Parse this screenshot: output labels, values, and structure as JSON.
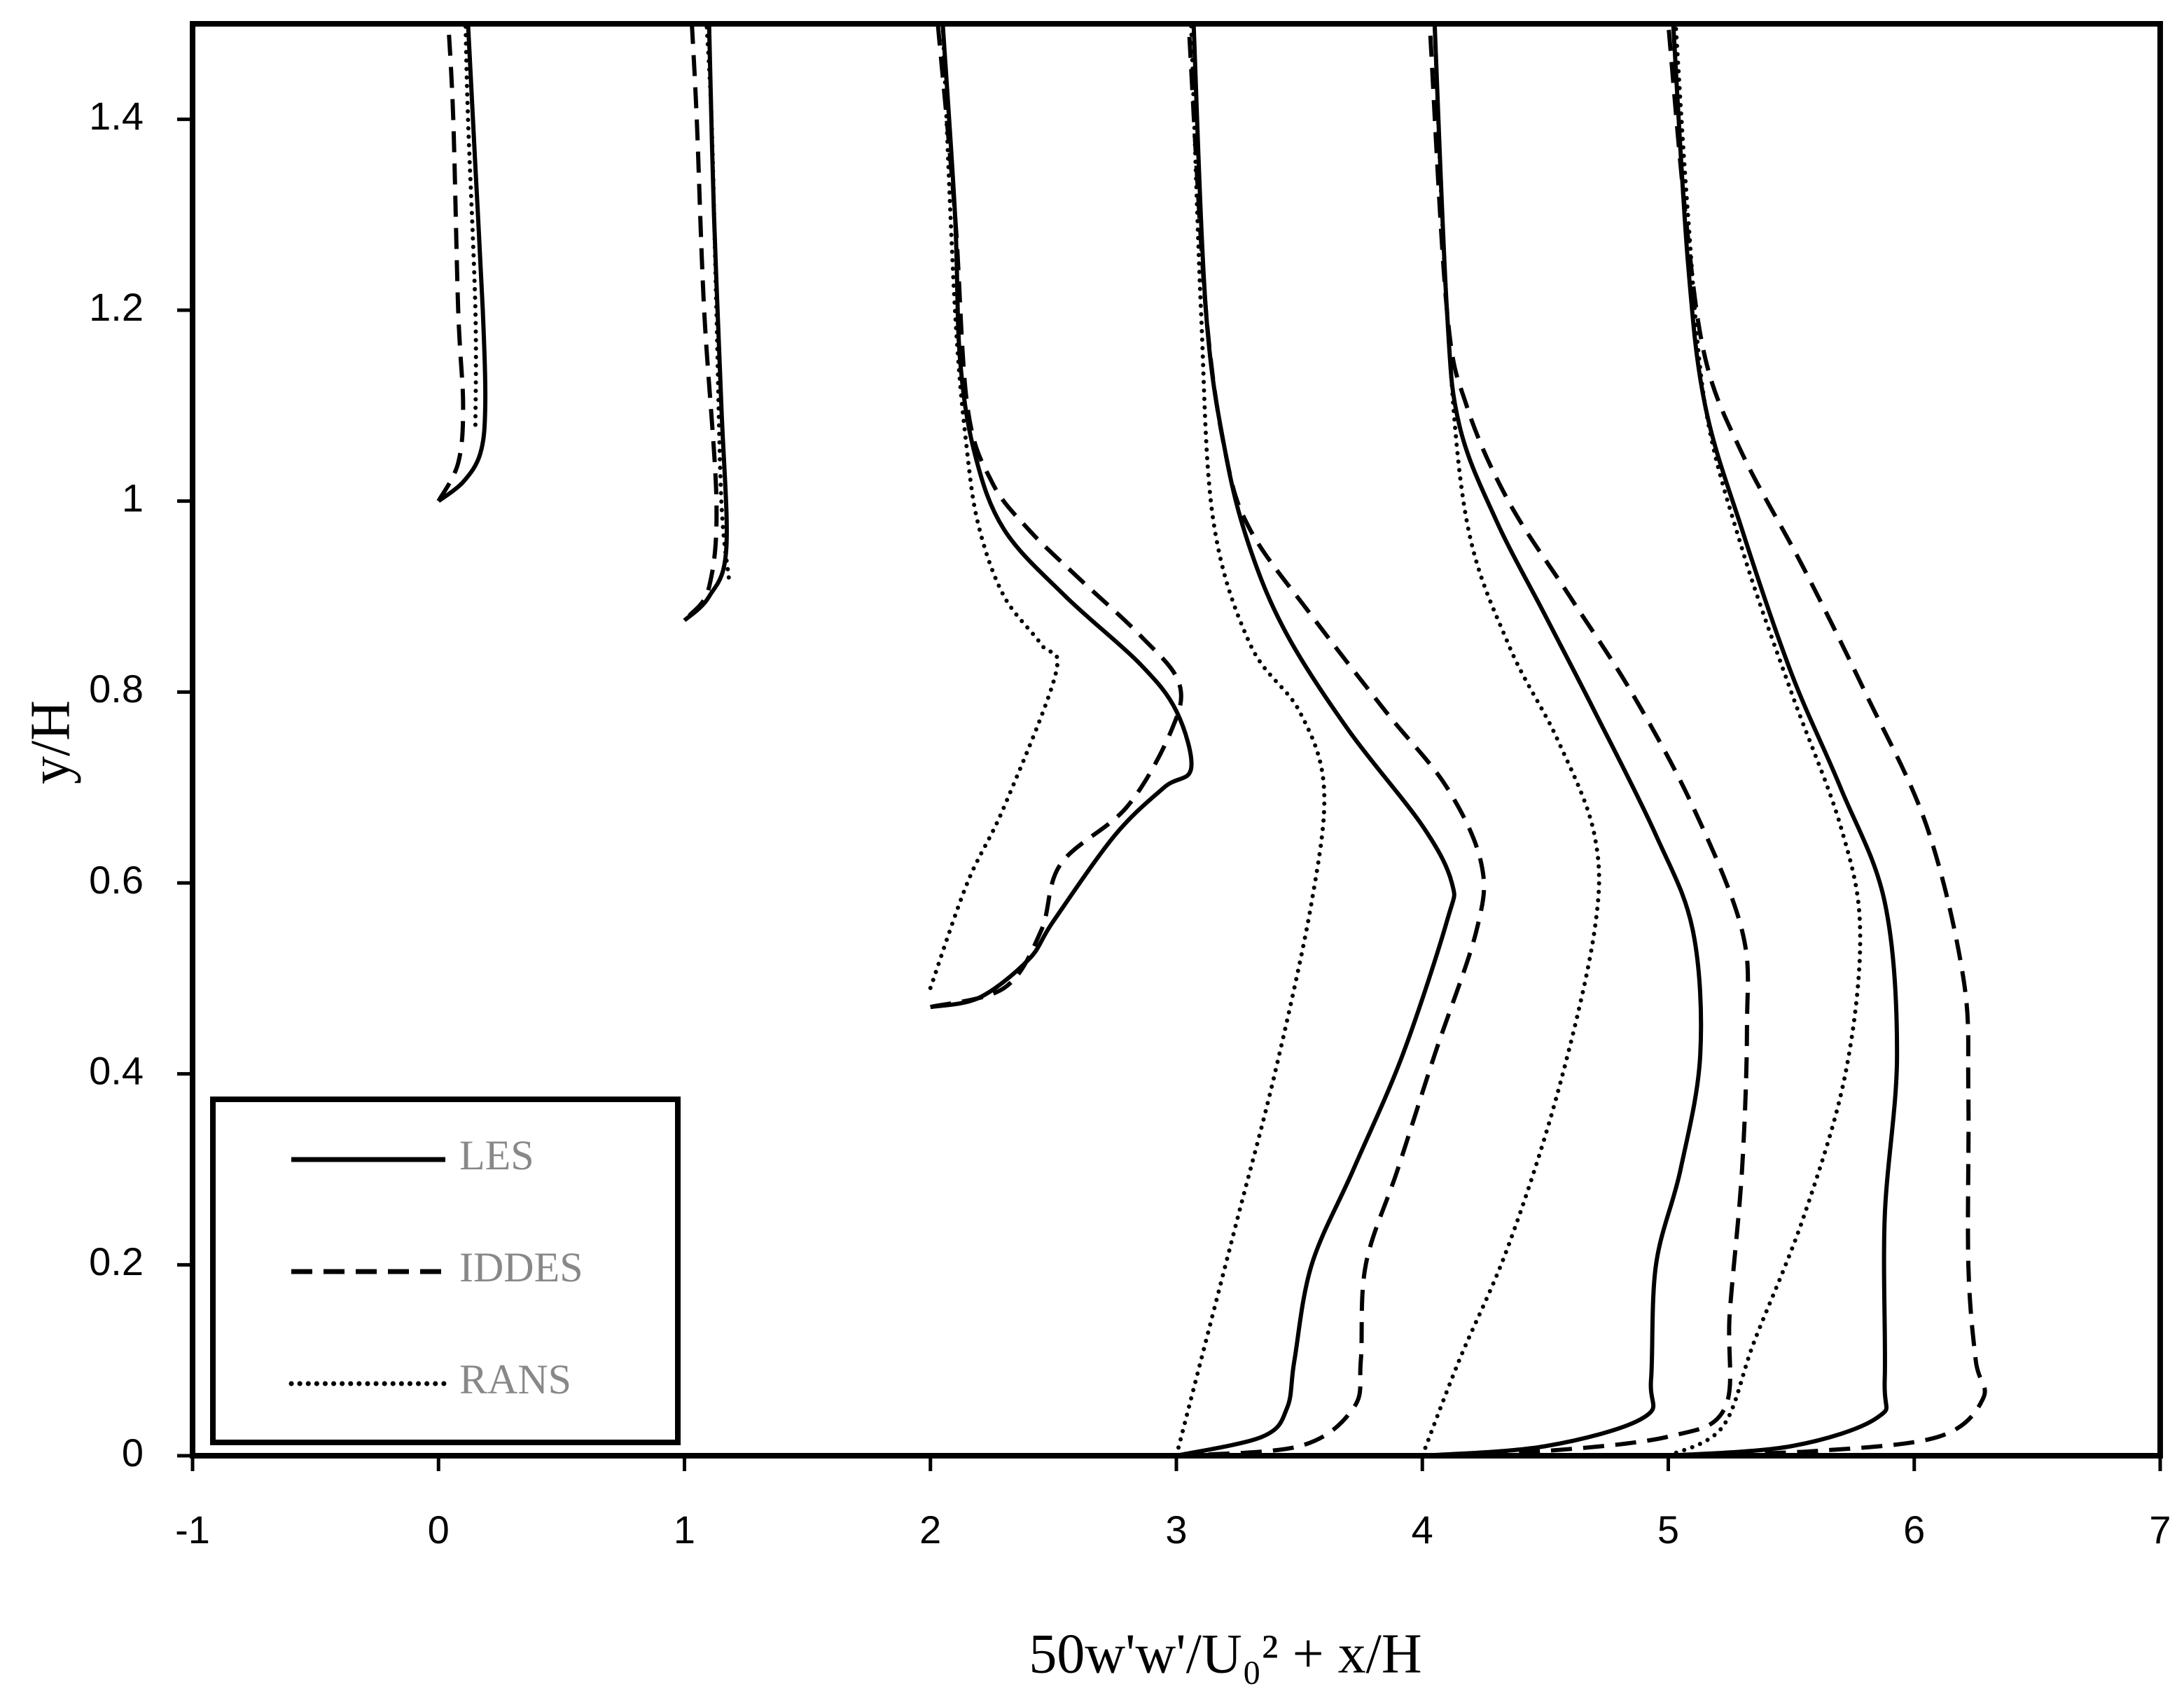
{
  "chart_data": {
    "type": "line",
    "xlabel": "50w'w'/U₀² + x/H",
    "ylabel": "y/H",
    "xlim": [
      -1,
      7
    ],
    "xticks": [
      -1,
      0,
      1,
      2,
      3,
      4,
      5,
      6,
      7
    ],
    "ylim": [
      0,
      1.5
    ],
    "yticks": [
      0,
      0.2,
      0.4,
      0.6,
      0.8,
      1,
      1.2,
      1.4
    ],
    "legend": "lower left",
    "series": [
      {
        "name": "LES",
        "color": "#000000",
        "dash": "solid",
        "x": [
          0,
          0.1,
          0.17,
          0.19,
          0.18,
          0.15,
          0.12,
          null,
          1.0,
          1.1,
          1.17,
          1.15,
          1.12,
          1.1,
          null,
          2.0,
          2.2,
          2.4,
          2.5,
          2.75,
          2.95,
          3.06,
          3.0,
          2.85,
          2.55,
          2.3,
          2.18,
          2.12,
          2.1,
          2.05,
          null,
          3.0,
          3.35,
          3.45,
          3.48,
          3.55,
          3.72,
          3.92,
          4.1,
          4.12,
          4.0,
          3.7,
          3.45,
          3.3,
          3.2,
          3.12,
          3.07,
          null,
          4.0,
          4.5,
          4.9,
          4.93,
          4.95,
          5.05,
          5.13,
          5.1,
          4.95,
          4.7,
          4.5,
          4.3,
          4.15,
          4.1,
          4.05,
          null,
          5.0,
          5.5,
          5.85,
          5.88,
          5.88,
          5.93,
          5.88,
          5.7,
          5.5,
          5.3,
          5.15,
          5.08,
          5.02
        ],
        "values": [
          1.0,
          1.02,
          1.05,
          1.1,
          1.2,
          1.35,
          1.5,
          null,
          0.875,
          0.9,
          0.95,
          1.1,
          1.3,
          1.5,
          null,
          0.47,
          0.48,
          0.52,
          0.56,
          0.65,
          0.7,
          0.72,
          0.78,
          0.83,
          0.9,
          0.97,
          1.05,
          1.15,
          1.3,
          1.5,
          null,
          0,
          0.02,
          0.05,
          0.1,
          0.2,
          0.3,
          0.42,
          0.56,
          0.6,
          0.66,
          0.76,
          0.86,
          0.95,
          1.05,
          1.2,
          1.5,
          null,
          0,
          0.01,
          0.04,
          0.08,
          0.2,
          0.3,
          0.42,
          0.55,
          0.65,
          0.78,
          0.88,
          0.98,
          1.08,
          1.2,
          1.5,
          null,
          0,
          0.01,
          0.04,
          0.08,
          0.25,
          0.42,
          0.58,
          0.7,
          0.82,
          0.97,
          1.1,
          1.25,
          1.5
        ]
      },
      {
        "name": "IDDES",
        "color": "#000000",
        "dash": "dashed",
        "x": [
          0,
          0.08,
          0.1,
          0.08,
          0.06,
          0.04,
          null,
          1.02,
          1.1,
          1.13,
          1.08,
          1.05,
          1.03,
          null,
          2.0,
          2.3,
          2.45,
          2.53,
          2.8,
          2.98,
          3.01,
          2.85,
          2.6,
          2.4,
          2.25,
          2.15,
          2.1,
          2.03,
          null,
          3.0,
          3.5,
          3.72,
          3.75,
          3.77,
          3.9,
          4.05,
          4.22,
          4.24,
          4.1,
          3.85,
          3.55,
          3.3,
          3.2,
          3.12,
          3.05,
          null,
          4.0,
          4.5,
          5.0,
          5.23,
          5.25,
          5.3,
          5.32,
          5.3,
          5.1,
          4.85,
          4.6,
          4.35,
          4.18,
          4.1,
          4.03,
          null,
          5.0,
          5.6,
          6.1,
          6.28,
          6.25,
          6.22,
          6.22,
          6.2,
          6.05,
          5.8,
          5.55,
          5.3,
          5.15,
          5.07,
          5.0
        ],
        "values": [
          1.0,
          1.04,
          1.1,
          1.2,
          1.4,
          1.5,
          null,
          0.88,
          0.91,
          1.0,
          1.2,
          1.4,
          1.5,
          null,
          0.47,
          0.49,
          0.55,
          0.62,
          0.68,
          0.76,
          0.81,
          0.86,
          0.92,
          0.97,
          1.02,
          1.1,
          1.3,
          1.5,
          null,
          0,
          0.01,
          0.05,
          0.1,
          0.2,
          0.3,
          0.42,
          0.55,
          0.62,
          0.7,
          0.78,
          0.88,
          0.97,
          1.05,
          1.2,
          1.5,
          null,
          0,
          0.005,
          0.02,
          0.05,
          0.15,
          0.3,
          0.45,
          0.55,
          0.68,
          0.8,
          0.9,
          1.0,
          1.1,
          1.2,
          1.5,
          null,
          0,
          0.005,
          0.02,
          0.06,
          0.1,
          0.2,
          0.38,
          0.5,
          0.66,
          0.8,
          0.93,
          1.05,
          1.15,
          1.3,
          1.5
        ]
      },
      {
        "name": "RANS",
        "color": "#000000",
        "dash": "dotted",
        "x": [
          0.15,
          0.15,
          0.12,
          0.11,
          null,
          1.18,
          1.15,
          1.13,
          1.11,
          1.09,
          null,
          2.0,
          2.15,
          2.3,
          2.51,
          2.45,
          2.3,
          2.2,
          2.15,
          2.1,
          2.05,
          null,
          3.0,
          3.1,
          3.25,
          3.4,
          3.55,
          3.6,
          3.5,
          3.3,
          3.15,
          3.1,
          3.06,
          null,
          4.0,
          4.15,
          4.35,
          4.55,
          4.7,
          4.7,
          4.55,
          4.35,
          4.18,
          4.1,
          4.05,
          null,
          5.0,
          5.22,
          5.35,
          5.55,
          5.72,
          5.78,
          5.7,
          5.5,
          5.3,
          5.15,
          5.08,
          5.03
        ],
        "values": [
          1.08,
          1.2,
          1.4,
          1.5,
          null,
          0.92,
          1.0,
          1.2,
          1.4,
          1.5,
          null,
          0.49,
          0.6,
          0.68,
          0.82,
          0.85,
          0.9,
          0.97,
          1.05,
          1.2,
          1.5,
          null,
          0,
          0.1,
          0.25,
          0.4,
          0.58,
          0.7,
          0.78,
          0.85,
          0.98,
          1.2,
          1.5,
          null,
          0,
          0.1,
          0.22,
          0.38,
          0.55,
          0.65,
          0.75,
          0.85,
          0.98,
          1.2,
          1.5,
          null,
          0,
          0.03,
          0.12,
          0.25,
          0.4,
          0.55,
          0.66,
          0.8,
          0.95,
          1.1,
          1.3,
          1.5
        ]
      }
    ]
  }
}
